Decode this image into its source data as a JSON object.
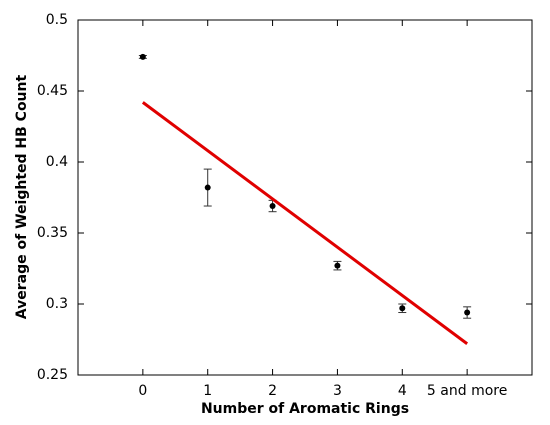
{
  "chart_data": {
    "type": "scatter",
    "xlabel": "Number of Aromatic Rings",
    "ylabel": "Average of Weighted HB Count",
    "x": [
      0,
      1,
      2,
      3,
      4,
      5
    ],
    "values": [
      0.474,
      0.382,
      0.369,
      0.327,
      0.297,
      0.294
    ],
    "errors": [
      0.001,
      0.013,
      0.004,
      0.003,
      0.003,
      0.004
    ],
    "color": "#000000",
    "trend": {
      "x": [
        0,
        5
      ],
      "values": [
        0.442,
        0.272
      ],
      "color": "#e00000"
    },
    "xlim": [
      -1,
      6
    ],
    "xticks": [
      0,
      1,
      2,
      3,
      4,
      {
        "value": 5,
        "label": "5 and more"
      }
    ],
    "ylim": [
      0.25,
      0.5
    ],
    "yticks": [
      0.25,
      0.3,
      0.35,
      0.4,
      0.45,
      0.5
    ]
  }
}
